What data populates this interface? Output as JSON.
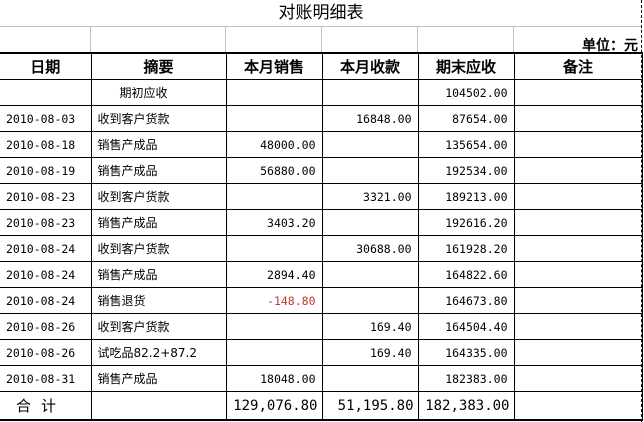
{
  "title": "对账明细表",
  "unit_label": "单位：元",
  "columns": [
    "日期",
    "摘要",
    "本月销售",
    "本月收款",
    "期末应收",
    "备注"
  ],
  "rows": [
    {
      "date": "",
      "summary": "期初应收",
      "sales": "",
      "receipts": "",
      "balance": "104502.00",
      "note": ""
    },
    {
      "date": "2010-08-03",
      "summary": "收到客户货款",
      "sales": "",
      "receipts": "16848.00",
      "balance": "87654.00",
      "note": ""
    },
    {
      "date": "2010-08-18",
      "summary": "销售产成品",
      "sales": "48000.00",
      "receipts": "",
      "balance": "135654.00",
      "note": ""
    },
    {
      "date": "2010-08-19",
      "summary": "销售产成品",
      "sales": "56880.00",
      "receipts": "",
      "balance": "192534.00",
      "note": ""
    },
    {
      "date": "2010-08-23",
      "summary": "收到客户货款",
      "sales": "",
      "receipts": "3321.00",
      "balance": "189213.00",
      "note": ""
    },
    {
      "date": "2010-08-23",
      "summary": "销售产成品",
      "sales": "3403.20",
      "receipts": "",
      "balance": "192616.20",
      "note": ""
    },
    {
      "date": "2010-08-24",
      "summary": "收到客户货款",
      "sales": "",
      "receipts": "30688.00",
      "balance": "161928.20",
      "note": ""
    },
    {
      "date": "2010-08-24",
      "summary": "销售产成品",
      "sales": "2894.40",
      "receipts": "",
      "balance": "164822.60",
      "note": ""
    },
    {
      "date": "2010-08-24",
      "summary": "销售退货",
      "sales": "-148.80",
      "receipts": "",
      "balance": "164673.80",
      "note": ""
    },
    {
      "date": "2010-08-26",
      "summary": "收到客户货款",
      "sales": "",
      "receipts": "169.40",
      "balance": "164504.40",
      "note": ""
    },
    {
      "date": "2010-08-26",
      "summary": "试吃品82.2+87.2",
      "sales": "",
      "receipts": "169.40",
      "balance": "164335.00",
      "note": ""
    },
    {
      "date": "2010-08-31",
      "summary": "销售产成品",
      "sales": "18048.00",
      "receipts": "",
      "balance": "182383.00",
      "note": ""
    }
  ],
  "total": {
    "label": "合计",
    "summary": "",
    "sales": "129,076.80",
    "receipts": "51,195.80",
    "balance": "182,383.00",
    "note": ""
  },
  "colors": {
    "negative": "#c0392b",
    "gridline": "#c0c0c0",
    "border": "#000000"
  }
}
